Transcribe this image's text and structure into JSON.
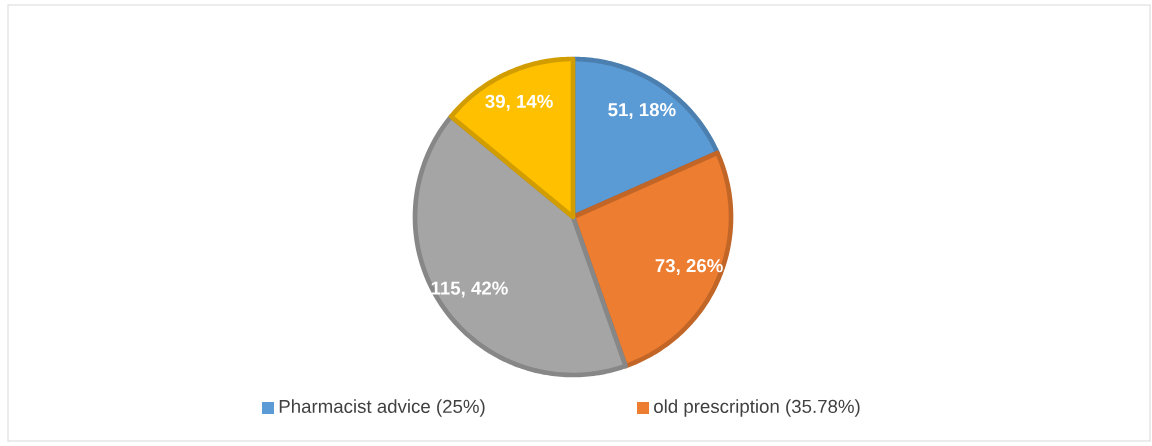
{
  "chart_data": {
    "type": "pie",
    "categories": [
      "Pharmacist advice (25%)",
      "old prescription (35.78%)",
      null,
      null
    ],
    "values": [
      51,
      73,
      115,
      39
    ],
    "colors": [
      "#5b9bd5",
      "#ed7d31",
      "#a5a5a5",
      "#ffc000"
    ],
    "value_labels": [
      "51, 18%",
      "73, 26%",
      "115, 42%",
      "39, 14%"
    ],
    "legend": "bottom"
  }
}
